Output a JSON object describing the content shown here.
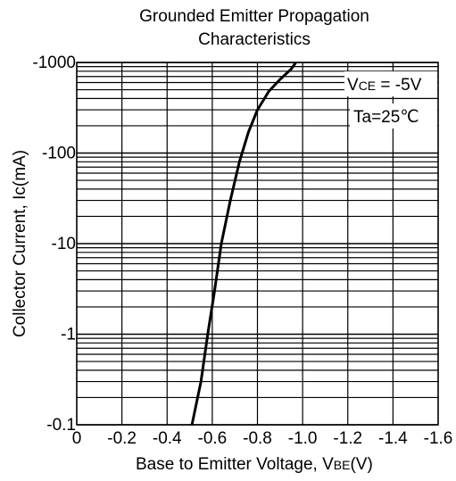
{
  "chart_data": {
    "type": "line",
    "title": [
      "Grounded Emitter Propagation",
      "Characteristics"
    ],
    "xlabel": {
      "text": "Base to Emitter Voltage, V",
      "sub": "BE",
      "unit": "(V)"
    },
    "ylabel": "Collector Current, Ic(mA)",
    "x_ticks": [
      0,
      -0.2,
      -0.4,
      -0.6,
      -0.8,
      -1.0,
      -1.2,
      -1.4,
      -1.6
    ],
    "x_tick_labels": [
      "0",
      "-0.2",
      "-0.4",
      "-0.6",
      "-0.8",
      "-1.0",
      "-1.2",
      "-1.4",
      "-1.6"
    ],
    "xlim": [
      0,
      -1.6
    ],
    "y_scale": "log",
    "y_ticks": [
      -0.1,
      -1,
      -10,
      -100,
      -1000
    ],
    "y_tick_labels": [
      "-0.1",
      "-1",
      "-10",
      "-100",
      "-1000"
    ],
    "ylim": [
      -0.1,
      -1000
    ],
    "grid": true,
    "series": [
      {
        "x": [
          -0.51,
          -0.55,
          -0.58,
          -0.61,
          -0.64,
          -0.68,
          -0.72,
          -0.76,
          -0.8,
          -0.85,
          -0.9,
          -0.95,
          -0.97
        ],
        "y": [
          -0.1,
          -0.3,
          -1,
          -3,
          -10,
          -30,
          -80,
          -170,
          -300,
          -480,
          -650,
          -850,
          -1000
        ]
      }
    ],
    "annotations": [
      {
        "text": "V",
        "sub": "CE",
        "rest": " = -5V"
      },
      {
        "text": "Ta=25℃"
      }
    ]
  }
}
